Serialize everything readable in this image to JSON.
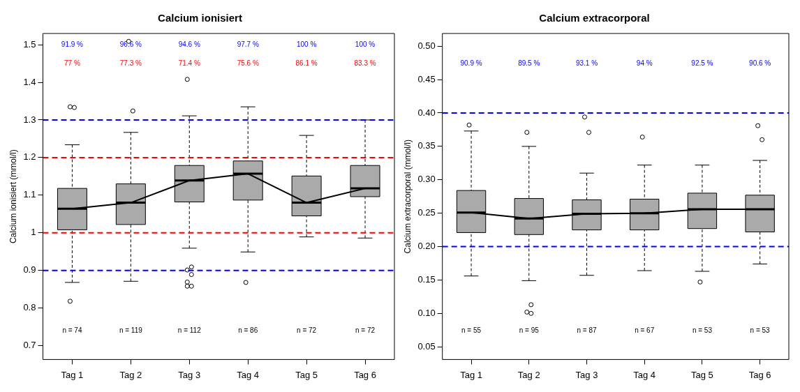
{
  "chart_data": [
    {
      "type": "box",
      "title": "Calcium ionisiert",
      "ylabel": "Calcium ionisiert (mmol/l)",
      "categories": [
        "Tag 1",
        "Tag 2",
        "Tag 3",
        "Tag 4",
        "Tag 5",
        "Tag 6"
      ],
      "ylim": [
        0.663,
        1.53
      ],
      "yticks": [
        0.7,
        0.8,
        0.9,
        1.0,
        1.1,
        1.2,
        1.3,
        1.4,
        1.5
      ],
      "grid": false,
      "legend": false,
      "series": [
        {
          "color": "#aaaaaa",
          "boxes": [
            {
              "low": 0.868,
              "q1": 1.008,
              "median": 1.064,
              "q3": 1.118,
              "high": 1.234,
              "outliers": [
                1.335,
                1.333,
                0.818
              ]
            },
            {
              "low": 0.871,
              "q1": 1.022,
              "median": 1.08,
              "q3": 1.13,
              "high": 1.267,
              "outliers": [
                1.509,
                1.324
              ]
            },
            {
              "low": 0.959,
              "q1": 1.082,
              "median": 1.139,
              "q3": 1.179,
              "high": 1.311,
              "outliers": [
                1.408,
                0.909,
                0.901,
                0.889,
                0.869,
                0.858,
                0.858
              ]
            },
            {
              "low": 0.949,
              "q1": 1.087,
              "median": 1.157,
              "q3": 1.191,
              "high": 1.335,
              "outliers": [
                0.868
              ]
            },
            {
              "low": 0.989,
              "q1": 1.045,
              "median": 1.08,
              "q3": 1.151,
              "high": 1.259
            },
            {
              "low": 0.986,
              "q1": 1.096,
              "median": 1.118,
              "q3": 1.179,
              "high": 1.3
            }
          ]
        },
        {
          "type": "line",
          "color": "#000000",
          "values": [
            1.064,
            1.08,
            1.139,
            1.157,
            1.08,
            1.118
          ]
        }
      ],
      "ref_lines": [
        {
          "axis": "y",
          "value": 1.3,
          "color": "#0000ff",
          "line_style": "dashed"
        },
        {
          "axis": "y",
          "value": 1.2,
          "color": "#ff0000",
          "line_style": "dashed"
        },
        {
          "axis": "y",
          "value": 1.0,
          "color": "#ff0000",
          "line_style": "dashed"
        },
        {
          "axis": "y",
          "value": 0.9,
          "color": "#0000ff",
          "line_style": "dashed"
        }
      ],
      "annotations": [
        "91.9 %",
        "96.6 %",
        "94.6 %",
        "97.7 %",
        "100 %",
        "100 %",
        "77 %",
        "77.3 %",
        "71.4 %",
        "75.6 %",
        "86.1 %",
        "83.3 %",
        "n = 74",
        "n = 119",
        "n = 112",
        "n = 86",
        "n = 72",
        "n = 72"
      ]
    },
    {
      "type": "box",
      "title": "Calcium extracorporal",
      "ylabel": "Calcium extracorporal (mmol/l)",
      "categories": [
        "Tag 1",
        "Tag 2",
        "Tag 3",
        "Tag 4",
        "Tag 5",
        "Tag 6"
      ],
      "ylim": [
        0.031,
        0.519
      ],
      "yticks": [
        {
          "value": 0.05,
          "label": "0.05"
        },
        {
          "value": 0.1,
          "label": "0.10"
        },
        {
          "value": 0.15,
          "label": "0.15"
        },
        {
          "value": 0.2,
          "label": "0.20"
        },
        {
          "value": 0.25,
          "label": "0.25"
        },
        {
          "value": 0.3,
          "label": "0.30"
        },
        {
          "value": 0.35,
          "label": "0.35"
        },
        {
          "value": 0.4,
          "label": "0.40"
        },
        {
          "value": 0.45,
          "label": "0.45"
        },
        {
          "value": 0.5,
          "label": "0.50"
        }
      ],
      "grid": false,
      "legend": false,
      "series": [
        {
          "color": "#aaaaaa",
          "boxes": [
            {
              "low": 0.156,
              "q1": 0.221,
              "median": 0.251,
              "q3": 0.284,
              "high": 0.373,
              "outliers": [
                0.382
              ]
            },
            {
              "low": 0.149,
              "q1": 0.218,
              "median": 0.242,
              "q3": 0.272,
              "high": 0.35,
              "outliers": [
                0.371,
                0.113,
                0.102,
                0.1
              ]
            },
            {
              "low": 0.157,
              "q1": 0.225,
              "median": 0.249,
              "q3": 0.27,
              "high": 0.31,
              "outliers": [
                0.394,
                0.371
              ]
            },
            {
              "low": 0.164,
              "q1": 0.225,
              "median": 0.25,
              "q3": 0.271,
              "high": 0.322,
              "outliers": [
                0.364
              ]
            },
            {
              "low": 0.163,
              "q1": 0.227,
              "median": 0.256,
              "q3": 0.28,
              "high": 0.322,
              "outliers": [
                0.147
              ]
            },
            {
              "low": 0.174,
              "q1": 0.222,
              "median": 0.256,
              "q3": 0.277,
              "high": 0.329,
              "outliers": [
                0.381,
                0.36
              ]
            }
          ]
        },
        {
          "type": "line",
          "color": "#000000",
          "values": [
            0.251,
            0.242,
            0.249,
            0.25,
            0.256,
            0.256
          ]
        }
      ],
      "ref_lines": [
        {
          "axis": "y",
          "value": 0.4,
          "color": "#0000ff",
          "line_style": "dashed"
        },
        {
          "axis": "y",
          "value": 0.2,
          "color": "#0000ff",
          "line_style": "dashed"
        }
      ],
      "annotations": [
        "90.9 %",
        "89.5 %",
        "93.1 %",
        "94 %",
        "92.5 %",
        "90.6 %",
        "n = 55",
        "n = 95",
        "n = 87",
        "n = 67",
        "n = 53",
        "n = 53"
      ]
    }
  ]
}
